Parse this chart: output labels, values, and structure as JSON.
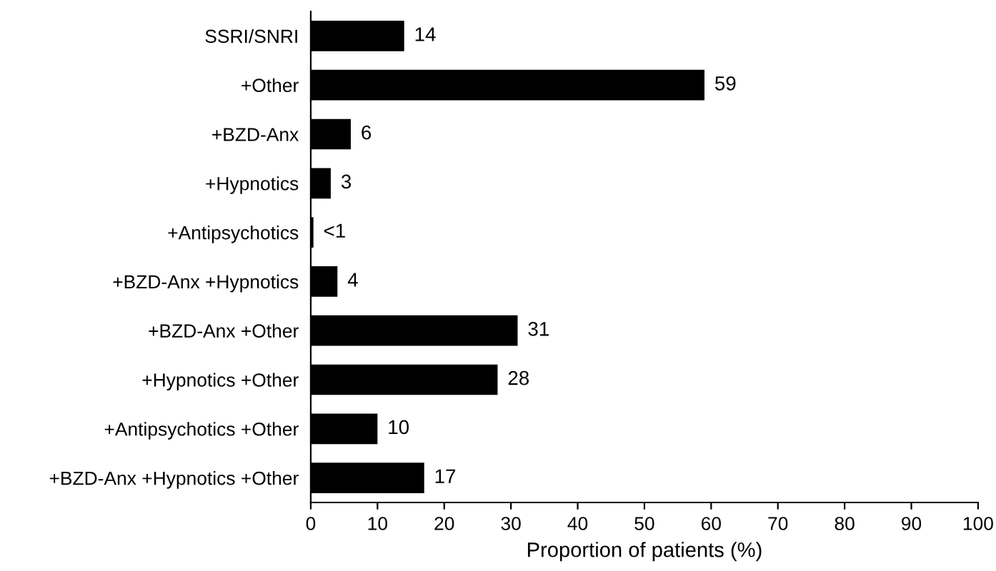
{
  "chart_data": {
    "type": "bar",
    "orientation": "horizontal",
    "xlabel": "Proportion of patients (%)",
    "categories": [
      "SSRI/SNRI",
      "+Other",
      "+BZD-Anx",
      "+Hypnotics",
      "+Antipsychotics",
      "+BZD-Anx +Hypnotics",
      "+BZD-Anx +Other",
      "+Hypnotics +Other",
      "+Antipsychotics +Other",
      "+BZD-Anx +Hypnotics +Other"
    ],
    "values": [
      14,
      59,
      6,
      3,
      0.4,
      4,
      31,
      28,
      10,
      17
    ],
    "value_labels": [
      "14",
      "59",
      "6",
      "3",
      "<1",
      "4",
      "31",
      "28",
      "10",
      "17"
    ],
    "color": "#000000",
    "xlim": [
      0,
      100
    ],
    "xticks": [
      0,
      10,
      20,
      30,
      40,
      50,
      60,
      70,
      80,
      90,
      100
    ],
    "grid": false,
    "legend": false
  }
}
